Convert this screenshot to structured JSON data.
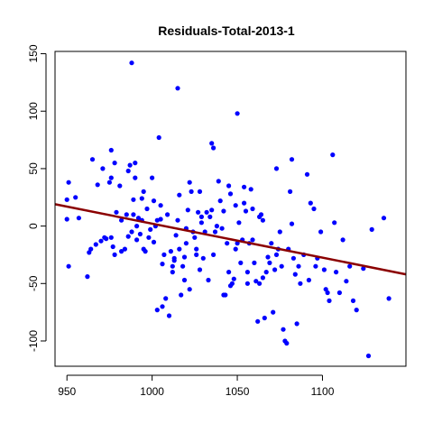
{
  "chart_data": {
    "type": "scatter",
    "title": "Residuals-Total-2013-1",
    "xlabel": "",
    "ylabel": "",
    "xlim": [
      943,
      1149
    ],
    "ylim": [
      -122,
      152
    ],
    "x_ticks": [
      950,
      1000,
      1050,
      1100
    ],
    "x_tick_labels": [
      "950",
      "1000",
      "1050",
      "1100"
    ],
    "y_ticks": [
      -100,
      -50,
      0,
      50,
      100,
      150
    ],
    "y_tick_labels": [
      "-100",
      "-50",
      "0",
      "50",
      "100",
      "150"
    ],
    "grid": false,
    "legend": "none",
    "point_color": "#0000ff",
    "line_color": "#8b0000",
    "fit_line": {
      "x": [
        943,
        1149
      ],
      "y": [
        19,
        -42
      ]
    },
    "points": [
      [
        950,
        6
      ],
      [
        950,
        23
      ],
      [
        951,
        38
      ],
      [
        951,
        -35
      ],
      [
        955,
        25
      ],
      [
        957,
        7
      ],
      [
        962,
        -44
      ],
      [
        963,
        -23
      ],
      [
        964,
        -20
      ],
      [
        965,
        58
      ],
      [
        967,
        -16
      ],
      [
        968,
        36
      ],
      [
        970,
        -13
      ],
      [
        971,
        50
      ],
      [
        972,
        -10
      ],
      [
        973,
        -11
      ],
      [
        975,
        38
      ],
      [
        976,
        66
      ],
      [
        976,
        42
      ],
      [
        976,
        -10
      ],
      [
        977,
        -18
      ],
      [
        978,
        -25
      ],
      [
        978,
        55
      ],
      [
        979,
        12
      ],
      [
        981,
        35
      ],
      [
        982,
        -22
      ],
      [
        982,
        5
      ],
      [
        984,
        -20
      ],
      [
        985,
        10
      ],
      [
        986,
        -9
      ],
      [
        986,
        48
      ],
      [
        987,
        53
      ],
      [
        988,
        142
      ],
      [
        988,
        -5
      ],
      [
        989,
        23
      ],
      [
        989,
        10
      ],
      [
        990,
        55
      ],
      [
        990,
        42
      ],
      [
        991,
        0
      ],
      [
        991,
        -12
      ],
      [
        992,
        7
      ],
      [
        993,
        -7
      ],
      [
        994,
        24
      ],
      [
        994,
        5
      ],
      [
        995,
        30
      ],
      [
        995,
        -20
      ],
      [
        996,
        -22
      ],
      [
        997,
        15
      ],
      [
        998,
        -10
      ],
      [
        999,
        -3
      ],
      [
        1000,
        42
      ],
      [
        1001,
        22
      ],
      [
        1001,
        -14
      ],
      [
        1002,
        0
      ],
      [
        1003,
        -73
      ],
      [
        1003,
        5
      ],
      [
        1004,
        77
      ],
      [
        1005,
        18
      ],
      [
        1005,
        6
      ],
      [
        1006,
        -70
      ],
      [
        1006,
        -33
      ],
      [
        1007,
        -25
      ],
      [
        1008,
        -63
      ],
      [
        1009,
        10
      ],
      [
        1010,
        -78
      ],
      [
        1011,
        -22
      ],
      [
        1012,
        -40
      ],
      [
        1012,
        -35
      ],
      [
        1013,
        -28
      ],
      [
        1013,
        -30
      ],
      [
        1014,
        -8
      ],
      [
        1015,
        5
      ],
      [
        1015,
        120
      ],
      [
        1016,
        -20
      ],
      [
        1016,
        27
      ],
      [
        1017,
        -60
      ],
      [
        1018,
        -35
      ],
      [
        1019,
        -47
      ],
      [
        1019,
        -27
      ],
      [
        1020,
        -15
      ],
      [
        1020,
        -2
      ],
      [
        1021,
        14
      ],
      [
        1022,
        -55
      ],
      [
        1022,
        38
      ],
      [
        1023,
        30
      ],
      [
        1024,
        -5
      ],
      [
        1025,
        -10
      ],
      [
        1026,
        -20
      ],
      [
        1026,
        -25
      ],
      [
        1027,
        12
      ],
      [
        1028,
        -38
      ],
      [
        1028,
        30
      ],
      [
        1029,
        3
      ],
      [
        1029,
        8
      ],
      [
        1030,
        -28
      ],
      [
        1031,
        -5
      ],
      [
        1032,
        12
      ],
      [
        1033,
        -47
      ],
      [
        1034,
        8
      ],
      [
        1035,
        14
      ],
      [
        1035,
        72
      ],
      [
        1036,
        68
      ],
      [
        1036,
        -25
      ],
      [
        1037,
        -5
      ],
      [
        1038,
        0
      ],
      [
        1039,
        39
      ],
      [
        1040,
        22
      ],
      [
        1041,
        -2
      ],
      [
        1042,
        13
      ],
      [
        1042,
        -60
      ],
      [
        1043,
        -60
      ],
      [
        1044,
        -15
      ],
      [
        1045,
        35
      ],
      [
        1045,
        -40
      ],
      [
        1046,
        28
      ],
      [
        1046,
        -52
      ],
      [
        1047,
        -50
      ],
      [
        1048,
        -46
      ],
      [
        1049,
        18
      ],
      [
        1049,
        -20
      ],
      [
        1050,
        -15
      ],
      [
        1050,
        98
      ],
      [
        1051,
        3
      ],
      [
        1052,
        -32
      ],
      [
        1053,
        -12
      ],
      [
        1054,
        20
      ],
      [
        1054,
        34
      ],
      [
        1055,
        13
      ],
      [
        1056,
        -50
      ],
      [
        1056,
        -40
      ],
      [
        1057,
        -15
      ],
      [
        1058,
        32
      ],
      [
        1059,
        15
      ],
      [
        1059,
        -12
      ],
      [
        1060,
        -32
      ],
      [
        1061,
        -48
      ],
      [
        1062,
        -83
      ],
      [
        1063,
        -50
      ],
      [
        1063,
        8
      ],
      [
        1064,
        10
      ],
      [
        1065,
        5
      ],
      [
        1065,
        -45
      ],
      [
        1066,
        -80
      ],
      [
        1067,
        -40
      ],
      [
        1068,
        -27
      ],
      [
        1069,
        -32
      ],
      [
        1070,
        -15
      ],
      [
        1071,
        -75
      ],
      [
        1072,
        -38
      ],
      [
        1073,
        -25
      ],
      [
        1073,
        50
      ],
      [
        1074,
        -20
      ],
      [
        1075,
        -5
      ],
      [
        1076,
        -35
      ],
      [
        1077,
        -90
      ],
      [
        1078,
        -100
      ],
      [
        1079,
        -102
      ],
      [
        1080,
        -20
      ],
      [
        1081,
        30
      ],
      [
        1082,
        58
      ],
      [
        1082,
        2
      ],
      [
        1083,
        -28
      ],
      [
        1084,
        -42
      ],
      [
        1085,
        -85
      ],
      [
        1086,
        -35
      ],
      [
        1087,
        -50
      ],
      [
        1089,
        -25
      ],
      [
        1091,
        45
      ],
      [
        1092,
        -47
      ],
      [
        1093,
        20
      ],
      [
        1095,
        15
      ],
      [
        1096,
        -35
      ],
      [
        1097,
        -28
      ],
      [
        1099,
        -5
      ],
      [
        1101,
        -38
      ],
      [
        1102,
        -55
      ],
      [
        1103,
        -58
      ],
      [
        1104,
        -65
      ],
      [
        1106,
        62
      ],
      [
        1107,
        3
      ],
      [
        1108,
        -40
      ],
      [
        1110,
        -58
      ],
      [
        1112,
        -12
      ],
      [
        1114,
        -48
      ],
      [
        1116,
        -35
      ],
      [
        1118,
        -65
      ],
      [
        1120,
        -73
      ],
      [
        1124,
        -37
      ],
      [
        1127,
        -113
      ],
      [
        1129,
        -3
      ],
      [
        1136,
        7
      ],
      [
        1139,
        -63
      ]
    ]
  }
}
